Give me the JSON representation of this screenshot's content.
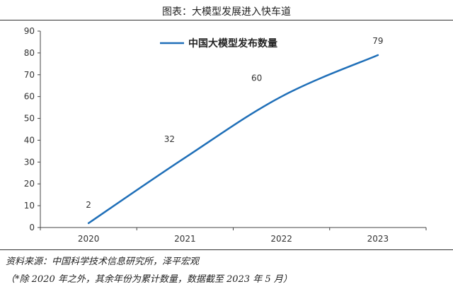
{
  "header": {
    "title": "图表：大模型发展进入快车道"
  },
  "footer": {
    "source": "资料来源：中国科学技术信息研究所，泽平宏观",
    "note": "（*除 2020 年之外，其余年份为累计数量，数据截至 2023 年 5 月）"
  },
  "chart_data": {
    "type": "line",
    "title": "",
    "xlabel": "",
    "ylabel": "",
    "categories": [
      "2020",
      "2021",
      "2022",
      "2023"
    ],
    "series": [
      {
        "name": "中国大模型发布数量",
        "values": [
          2,
          32,
          60,
          79
        ],
        "color": "#1f6fb8"
      }
    ],
    "ylim": [
      0,
      90
    ],
    "yticks": [
      0,
      10,
      20,
      30,
      40,
      50,
      60,
      70,
      80,
      90
    ],
    "grid": false,
    "legend_position": "top-center",
    "data_labels": true
  }
}
